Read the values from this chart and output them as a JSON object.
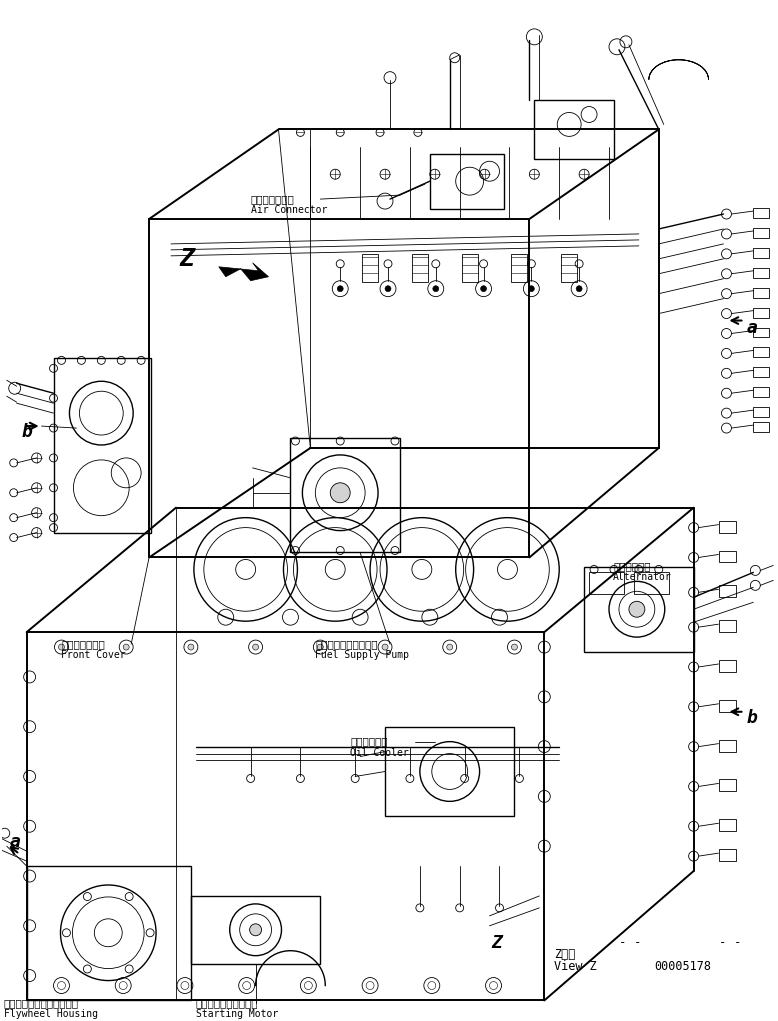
{
  "bg_color": "#ffffff",
  "line_color": "#000000",
  "fig_width": 7.78,
  "fig_height": 10.21,
  "dpi": 100,
  "labels": {
    "air_connector_jp": "エアーコネクタ",
    "air_connector_en": "Air Connector",
    "front_cover_jp": "フロントカバー",
    "front_cover_en": "Front Cover",
    "fuel_pump_jp": "フェルサプライポンプ",
    "fuel_pump_en": "Fuel Supply Pump",
    "alternator_jp": "オルタネータ",
    "alternator_en": "Alternator",
    "oil_cooler_jp": "オイルクーラ",
    "oil_cooler_en": "Oil Cooler",
    "flywheel_jp": "フライホイールハウジング",
    "flywheel_en": "Flywheel Housing",
    "starting_motor_jp": "スターティングモータ",
    "starting_motor_en": "Starting Motor",
    "view_z_jp": "Z　視",
    "view_z_en": "View Z",
    "part_number": "00005178",
    "label_a1": "a",
    "label_a2": "a",
    "label_b1": "b",
    "label_b2": "b",
    "label_z": "Z"
  }
}
